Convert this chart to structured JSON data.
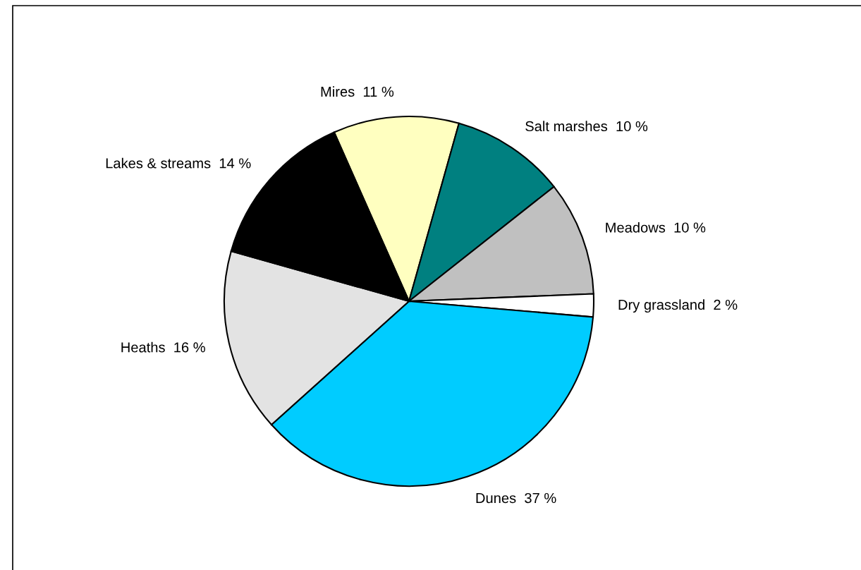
{
  "chart_data": {
    "type": "pie",
    "categories": [
      "Mires",
      "Salt marshes",
      "Meadows",
      "Dry grassland",
      "Dunes",
      "Heaths",
      "Lakes & streams"
    ],
    "values": [
      11,
      10,
      10,
      2,
      37,
      16,
      14
    ],
    "value_labels": [
      "11 %",
      "10 %",
      "10 %",
      "2 %",
      "37 %",
      "16 %",
      "14 %"
    ],
    "colors": [
      "#ffffc0",
      "#008080",
      "#c0c0c0",
      "#ffffff",
      "#00ccff",
      "#e3e3e3",
      "#000000"
    ],
    "legend": false
  }
}
